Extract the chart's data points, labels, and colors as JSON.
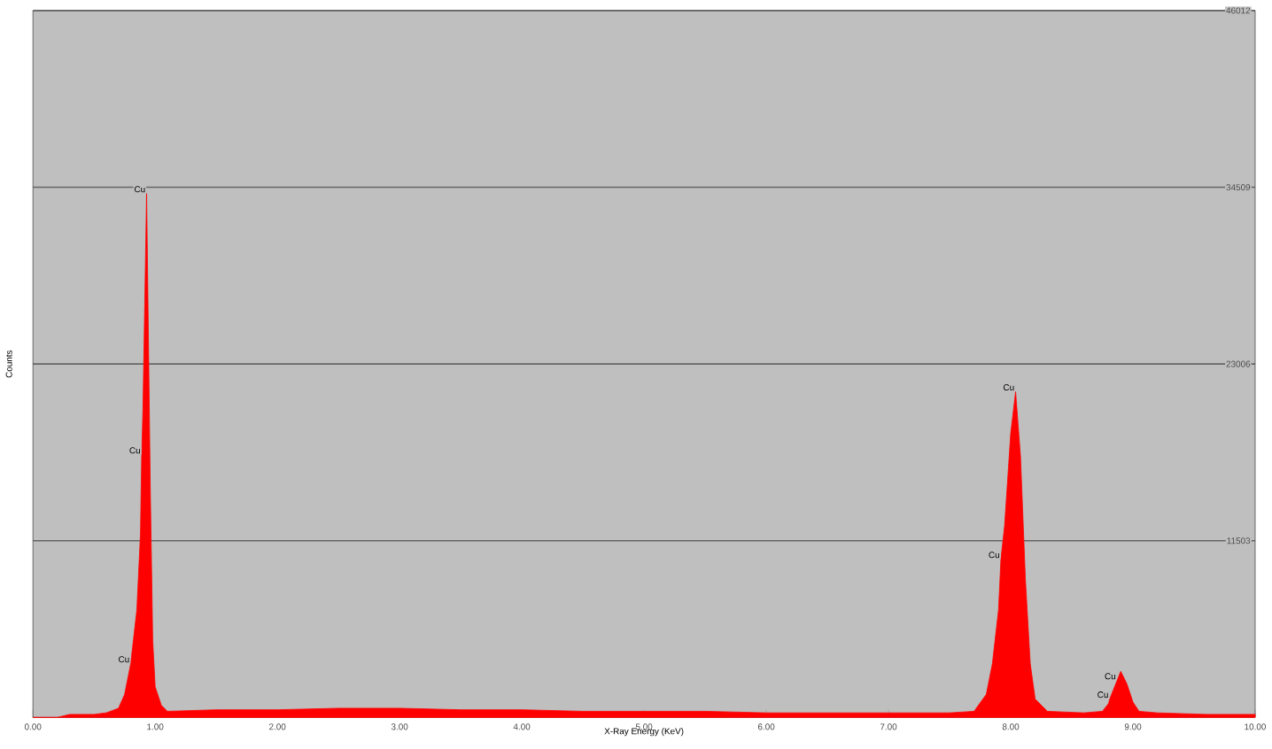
{
  "chart_data": {
    "type": "area",
    "xlabel": "X-Ray Energy (KeV)",
    "ylabel": "Counts",
    "x": [
      0.0,
      0.2,
      0.3,
      0.5,
      0.6,
      0.7,
      0.75,
      0.8,
      0.85,
      0.88,
      0.89,
      0.9,
      0.93,
      0.96,
      0.98,
      1.0,
      1.05,
      1.1,
      1.5,
      2.0,
      2.5,
      3.0,
      3.5,
      4.0,
      4.5,
      5.0,
      5.5,
      6.0,
      6.5,
      7.0,
      7.5,
      7.7,
      7.8,
      7.85,
      7.9,
      7.92,
      7.95,
      8.0,
      8.04,
      8.08,
      8.12,
      8.16,
      8.2,
      8.3,
      8.6,
      8.75,
      8.8,
      8.81,
      8.85,
      8.87,
      8.9,
      8.95,
      9.0,
      9.05,
      9.2,
      9.6,
      10.0
    ],
    "values": [
      0,
      0,
      200,
      200,
      300,
      600,
      1500,
      3500,
      7000,
      12000,
      17100,
      20000,
      34100,
      15000,
      5000,
      2000,
      800,
      400,
      500,
      500,
      600,
      600,
      500,
      500,
      400,
      400,
      400,
      300,
      300,
      300,
      300,
      400,
      1500,
      3500,
      7000,
      10300,
      12500,
      18500,
      21200,
      17000,
      9000,
      3500,
      1200,
      400,
      300,
      400,
      900,
      1200,
      2000,
      2400,
      3000,
      2200,
      1000,
      400,
      300,
      200,
      200
    ],
    "color": "#ff0000",
    "xlim": [
      0,
      10
    ],
    "ylim": [
      0,
      46012
    ],
    "xticks": [
      {
        "value": 0,
        "label": "0.00"
      },
      {
        "value": 1,
        "label": "1.00"
      },
      {
        "value": 2,
        "label": "2.00"
      },
      {
        "value": 3,
        "label": "3.00"
      },
      {
        "value": 4,
        "label": "4.00"
      },
      {
        "value": 5,
        "label": "5.00"
      },
      {
        "value": 6,
        "label": "6.00"
      },
      {
        "value": 7,
        "label": "7.00"
      },
      {
        "value": 8,
        "label": "8.00"
      },
      {
        "value": 9,
        "label": "9.00"
      },
      {
        "value": 10,
        "label": "10.00"
      }
    ],
    "yticks": [
      {
        "value": 11503,
        "label": "11503"
      },
      {
        "value": 23006,
        "label": "23006"
      },
      {
        "value": 34509,
        "label": "34509"
      },
      {
        "value": 46012,
        "label": "46012"
      }
    ],
    "grid": "y",
    "annotations": [
      {
        "text": "Cu",
        "x": 0.93,
        "y": 34100
      },
      {
        "text": "Cu",
        "x": 0.89,
        "y": 17100
      },
      {
        "text": "Cu",
        "x": 0.8,
        "y": 3500
      },
      {
        "text": "Cu",
        "x": 8.04,
        "y": 21200
      },
      {
        "text": "Cu",
        "x": 7.92,
        "y": 10300
      },
      {
        "text": "Cu",
        "x": 8.87,
        "y": 2400
      },
      {
        "text": "Cu",
        "x": 8.81,
        "y": 1200
      }
    ]
  }
}
